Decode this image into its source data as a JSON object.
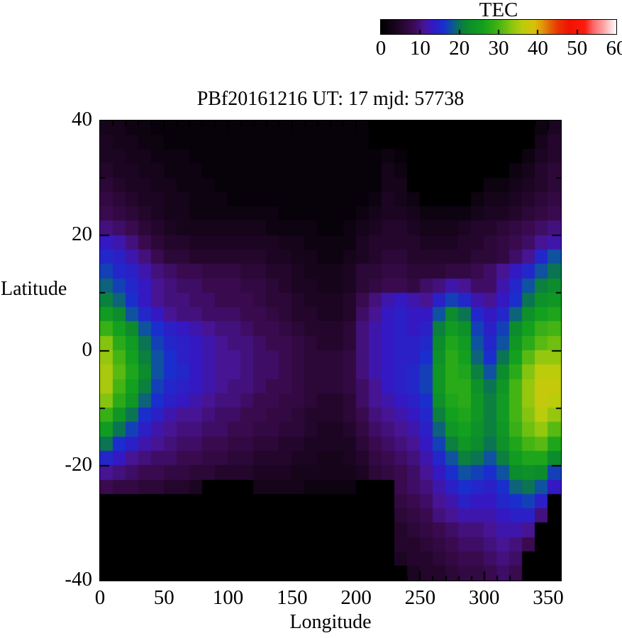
{
  "page": {
    "background": "#ffffff"
  },
  "chart_data": {
    "type": "heatmap",
    "title": "PBf20161216  UT: 17  mjd: 57738",
    "xlabel": "Longitude",
    "ylabel": "Latitude",
    "xlim": [
      0,
      360
    ],
    "ylim": [
      -40,
      40
    ],
    "x_major_ticks": [
      0,
      50,
      100,
      150,
      200,
      250,
      300,
      350
    ],
    "x_minor_tick_step": 10,
    "y_major_ticks": [
      40,
      20,
      0,
      -20,
      -40
    ],
    "y_minor_tick_step": 10,
    "grid_lines": false,
    "colorbar": {
      "title": "TEC",
      "min": 0,
      "max": 60,
      "tick_labels": [
        0,
        10,
        20,
        30,
        40,
        50,
        60
      ],
      "colormap_stops": [
        [
          0,
          "#000000"
        ],
        [
          4,
          "#1c0522"
        ],
        [
          8,
          "#3a0a4e"
        ],
        [
          11,
          "#471493"
        ],
        [
          13,
          "#3418c2"
        ],
        [
          16,
          "#1a2ecd"
        ],
        [
          18,
          "#0e52a0"
        ],
        [
          20,
          "#0b7452"
        ],
        [
          22,
          "#0c8c2c"
        ],
        [
          26,
          "#12a01e"
        ],
        [
          30,
          "#44b414"
        ],
        [
          33,
          "#84c410"
        ],
        [
          36,
          "#bacc0c"
        ],
        [
          39,
          "#d8c20a"
        ],
        [
          41,
          "#e09c08"
        ],
        [
          43,
          "#e46606"
        ],
        [
          45,
          "#ea3604"
        ],
        [
          48,
          "#f21203"
        ],
        [
          52,
          "#f91d10"
        ],
        [
          54,
          "#fa6464"
        ],
        [
          57,
          "#fdaaaa"
        ],
        [
          60,
          "#ffffff"
        ]
      ]
    },
    "grid": {
      "units": "TEC",
      "lon_start": 0,
      "lon_step": 10,
      "n_lon": 36,
      "lat_start": 40,
      "lat_step": -2.5,
      "n_lat": 32,
      "values": [
        [
          3,
          3,
          2,
          2,
          1,
          1,
          1,
          1,
          1,
          1,
          1,
          1,
          1,
          1,
          1,
          1,
          1,
          1,
          1,
          1,
          1,
          0,
          0,
          0,
          0,
          0,
          0,
          0,
          0,
          0,
          0,
          0,
          0,
          0,
          2,
          4
        ],
        [
          4,
          3,
          3,
          2,
          2,
          1,
          1,
          1,
          1,
          1,
          1,
          1,
          1,
          1,
          1,
          1,
          1,
          1,
          1,
          1,
          1,
          0,
          0,
          0,
          0,
          0,
          0,
          0,
          0,
          0,
          0,
          0,
          0,
          0,
          3,
          5
        ],
        [
          4,
          4,
          3,
          3,
          2,
          2,
          2,
          1,
          1,
          1,
          1,
          1,
          1,
          1,
          1,
          1,
          1,
          1,
          1,
          1,
          1,
          1,
          2,
          1,
          0,
          0,
          0,
          0,
          0,
          0,
          0,
          0,
          0,
          2,
          4,
          5
        ],
        [
          5,
          4,
          4,
          3,
          3,
          2,
          2,
          2,
          1,
          1,
          1,
          1,
          1,
          1,
          1,
          1,
          1,
          1,
          1,
          1,
          1,
          1,
          3,
          2,
          0,
          0,
          0,
          0,
          0,
          0,
          0,
          0,
          2,
          3,
          5,
          6
        ],
        [
          6,
          5,
          4,
          4,
          3,
          3,
          2,
          2,
          2,
          1,
          1,
          1,
          1,
          1,
          1,
          1,
          1,
          1,
          1,
          1,
          1,
          1,
          3,
          3,
          0,
          0,
          0,
          0,
          0,
          0,
          2,
          2,
          3,
          4,
          5,
          6
        ],
        [
          7,
          6,
          5,
          4,
          4,
          3,
          3,
          2,
          2,
          2,
          1,
          1,
          1,
          1,
          1,
          1,
          1,
          1,
          1,
          1,
          1,
          2,
          4,
          3,
          2,
          0,
          0,
          0,
          0,
          2,
          3,
          3,
          4,
          5,
          6,
          7
        ],
        [
          8,
          7,
          6,
          5,
          4,
          3,
          3,
          2,
          2,
          2,
          2,
          2,
          2,
          2,
          1,
          1,
          1,
          1,
          1,
          1,
          2,
          3,
          4,
          4,
          3,
          2,
          2,
          2,
          2,
          3,
          4,
          4,
          5,
          6,
          7,
          8
        ],
        [
          10,
          9,
          8,
          6,
          5,
          4,
          3,
          3,
          3,
          3,
          3,
          3,
          3,
          2,
          2,
          2,
          2,
          1,
          1,
          2,
          3,
          4,
          5,
          5,
          4,
          3,
          3,
          3,
          4,
          5,
          5,
          6,
          7,
          8,
          9,
          10
        ],
        [
          13,
          12,
          10,
          8,
          6,
          5,
          5,
          4,
          4,
          4,
          4,
          4,
          4,
          4,
          3,
          3,
          2,
          2,
          2,
          2,
          4,
          5,
          5,
          5,
          5,
          4,
          4,
          4,
          5,
          5,
          6,
          7,
          8,
          9,
          11,
          12
        ],
        [
          15,
          14,
          12,
          10,
          8,
          6,
          6,
          5,
          5,
          5,
          5,
          5,
          5,
          4,
          4,
          3,
          3,
          2,
          2,
          3,
          4,
          5,
          6,
          6,
          5,
          5,
          5,
          5,
          5,
          6,
          6,
          7,
          9,
          11,
          15,
          18
        ],
        [
          17,
          15,
          14,
          12,
          10,
          9,
          8,
          8,
          7,
          7,
          7,
          6,
          6,
          5,
          5,
          4,
          3,
          3,
          3,
          4,
          6,
          6,
          7,
          7,
          6,
          6,
          6,
          7,
          7,
          8,
          9,
          11,
          13,
          15,
          18,
          20
        ],
        [
          19,
          17,
          15,
          13,
          11,
          10,
          9,
          9,
          8,
          8,
          8,
          7,
          7,
          6,
          5,
          4,
          4,
          3,
          3,
          4,
          6,
          7,
          8,
          8,
          7,
          9,
          10,
          12,
          11,
          9,
          9,
          12,
          15,
          18,
          21,
          22
        ],
        [
          21,
          19,
          16,
          13,
          11,
          10,
          10,
          9,
          9,
          8,
          8,
          8,
          7,
          6,
          6,
          5,
          4,
          4,
          4,
          5,
          8,
          10,
          12,
          13,
          12,
          11,
          14,
          17,
          15,
          12,
          11,
          13,
          16,
          20,
          23,
          24
        ],
        [
          25,
          22,
          18,
          15,
          13,
          11,
          10,
          10,
          9,
          9,
          9,
          8,
          8,
          7,
          6,
          5,
          5,
          4,
          4,
          5,
          9,
          11,
          13,
          14,
          13,
          13,
          18,
          22,
          20,
          15,
          13,
          15,
          19,
          23,
          26,
          27
        ],
        [
          29,
          26,
          22,
          18,
          16,
          14,
          13,
          12,
          11,
          10,
          10,
          9,
          8,
          8,
          7,
          6,
          5,
          5,
          5,
          6,
          10,
          12,
          13,
          14,
          13,
          14,
          21,
          25,
          23,
          17,
          14,
          17,
          22,
          26,
          29,
          30
        ],
        [
          33,
          28,
          25,
          20,
          17,
          15,
          14,
          13,
          12,
          11,
          10,
          10,
          9,
          8,
          8,
          7,
          6,
          5,
          5,
          6,
          10,
          12,
          13,
          14,
          14,
          15,
          22,
          27,
          25,
          18,
          15,
          18,
          24,
          28,
          31,
          32
        ],
        [
          34,
          30,
          26,
          21,
          18,
          16,
          14,
          13,
          12,
          11,
          11,
          10,
          9,
          9,
          8,
          7,
          6,
          6,
          6,
          7,
          10,
          12,
          13,
          14,
          14,
          16,
          23,
          28,
          26,
          19,
          16,
          20,
          26,
          31,
          34,
          34
        ],
        [
          35,
          31,
          27,
          22,
          18,
          16,
          15,
          13,
          12,
          11,
          11,
          10,
          9,
          9,
          8,
          7,
          6,
          6,
          6,
          7,
          10,
          12,
          13,
          14,
          15,
          17,
          24,
          28,
          27,
          21,
          18,
          22,
          28,
          33,
          36,
          36
        ],
        [
          35,
          30,
          26,
          21,
          17,
          15,
          14,
          13,
          12,
          11,
          10,
          10,
          9,
          8,
          8,
          7,
          6,
          6,
          6,
          7,
          9,
          11,
          13,
          14,
          15,
          17,
          24,
          28,
          28,
          23,
          20,
          24,
          30,
          34,
          37,
          37
        ],
        [
          33,
          28,
          24,
          19,
          16,
          14,
          13,
          12,
          11,
          10,
          10,
          9,
          8,
          8,
          7,
          7,
          6,
          5,
          5,
          6,
          9,
          11,
          12,
          13,
          14,
          16,
          23,
          27,
          28,
          24,
          21,
          25,
          30,
          34,
          37,
          36
        ],
        [
          29,
          24,
          20,
          16,
          14,
          12,
          11,
          11,
          10,
          9,
          9,
          8,
          8,
          7,
          7,
          6,
          5,
          5,
          5,
          6,
          8,
          10,
          11,
          12,
          13,
          15,
          21,
          26,
          27,
          24,
          21,
          25,
          30,
          33,
          36,
          34
        ],
        [
          25,
          20,
          17,
          14,
          12,
          11,
          10,
          10,
          9,
          9,
          8,
          8,
          7,
          7,
          6,
          6,
          5,
          4,
          4,
          5,
          7,
          9,
          10,
          11,
          12,
          14,
          19,
          24,
          26,
          23,
          21,
          24,
          29,
          32,
          34,
          31
        ],
        [
          20,
          16,
          14,
          12,
          11,
          10,
          9,
          9,
          8,
          8,
          7,
          7,
          6,
          6,
          5,
          5,
          4,
          4,
          4,
          4,
          6,
          8,
          9,
          10,
          11,
          13,
          17,
          21,
          24,
          22,
          20,
          23,
          27,
          30,
          31,
          27
        ],
        [
          15,
          13,
          11,
          10,
          9,
          9,
          8,
          8,
          7,
          7,
          6,
          6,
          5,
          5,
          5,
          4,
          4,
          3,
          3,
          4,
          5,
          7,
          8,
          9,
          10,
          12,
          15,
          18,
          21,
          20,
          18,
          21,
          25,
          27,
          27,
          22
        ],
        [
          11,
          10,
          9,
          8,
          8,
          7,
          7,
          6,
          6,
          5,
          5,
          5,
          4,
          4,
          4,
          3,
          3,
          3,
          3,
          3,
          4,
          6,
          7,
          8,
          9,
          11,
          13,
          16,
          18,
          17,
          16,
          18,
          22,
          23,
          22,
          17
        ],
        [
          8,
          7,
          7,
          6,
          6,
          5,
          5,
          4,
          0,
          0,
          0,
          0,
          3,
          3,
          3,
          3,
          2,
          2,
          2,
          2,
          0,
          0,
          0,
          8,
          9,
          10,
          12,
          14,
          16,
          15,
          14,
          16,
          19,
          20,
          18,
          13
        ],
        [
          0,
          0,
          0,
          0,
          0,
          0,
          0,
          0,
          0,
          0,
          0,
          0,
          0,
          0,
          0,
          0,
          0,
          0,
          0,
          0,
          0,
          0,
          0,
          7,
          8,
          9,
          11,
          12,
          14,
          13,
          13,
          15,
          16,
          17,
          14,
          0
        ],
        [
          0,
          0,
          0,
          0,
          0,
          0,
          0,
          0,
          0,
          0,
          0,
          0,
          0,
          0,
          0,
          0,
          0,
          0,
          0,
          0,
          0,
          0,
          0,
          6,
          7,
          8,
          10,
          11,
          12,
          12,
          12,
          13,
          14,
          14,
          10,
          0
        ],
        [
          0,
          0,
          0,
          0,
          0,
          0,
          0,
          0,
          0,
          0,
          0,
          0,
          0,
          0,
          0,
          0,
          0,
          0,
          0,
          0,
          0,
          0,
          0,
          5,
          6,
          7,
          8,
          9,
          10,
          10,
          11,
          12,
          12,
          11,
          0,
          0
        ],
        [
          0,
          0,
          0,
          0,
          0,
          0,
          0,
          0,
          0,
          0,
          0,
          0,
          0,
          0,
          0,
          0,
          0,
          0,
          0,
          0,
          0,
          0,
          0,
          5,
          5,
          6,
          7,
          8,
          9,
          9,
          10,
          11,
          10,
          8,
          0,
          0
        ],
        [
          0,
          0,
          0,
          0,
          0,
          0,
          0,
          0,
          0,
          0,
          0,
          0,
          0,
          0,
          0,
          0,
          0,
          0,
          0,
          0,
          0,
          0,
          0,
          4,
          5,
          5,
          6,
          7,
          8,
          8,
          9,
          10,
          9,
          0,
          0,
          0
        ],
        [
          0,
          0,
          0,
          0,
          0,
          0,
          0,
          0,
          0,
          0,
          0,
          0,
          0,
          0,
          0,
          0,
          0,
          0,
          0,
          0,
          0,
          0,
          0,
          0,
          4,
          5,
          5,
          6,
          7,
          7,
          8,
          9,
          8,
          0,
          0,
          0
        ]
      ]
    }
  }
}
